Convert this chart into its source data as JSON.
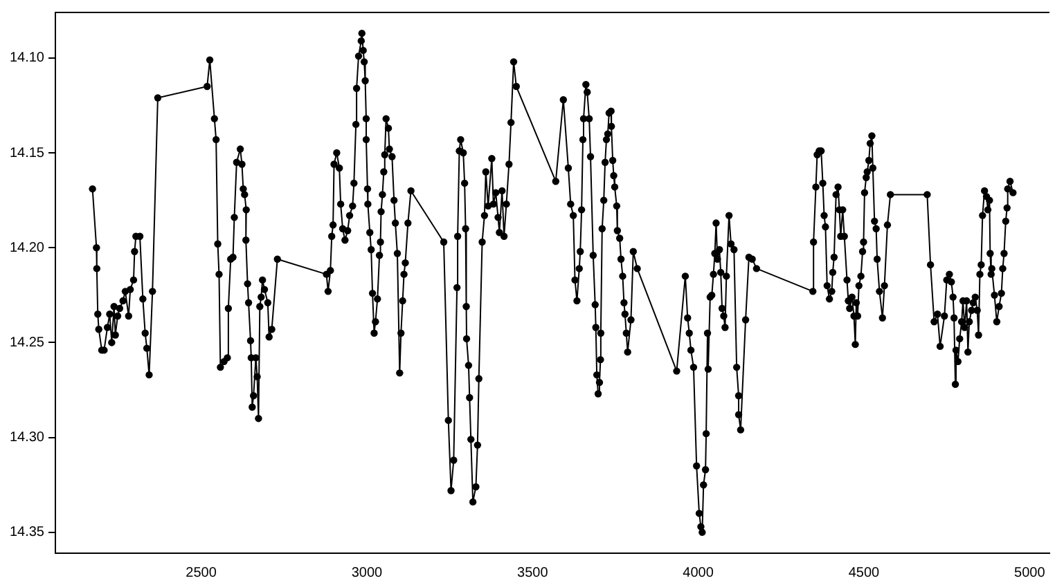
{
  "chart_data": {
    "type": "line",
    "marker": "circle",
    "line_style": "solid",
    "grid": false,
    "legend": false,
    "xlim": [
      2060,
      5060
    ],
    "xticks": [
      2500,
      3000,
      3500,
      4000,
      4500,
      5000
    ],
    "ylim": [
      14.361,
      14.076
    ],
    "yticks": [
      {
        "value": 14.1,
        "label": "14.10"
      },
      14.15,
      {
        "value": 14.2,
        "label": "14.20"
      },
      14.25,
      {
        "value": 14.3,
        "label": "14.30"
      },
      14.35
    ],
    "x": [
      2172,
      2184,
      2185,
      2188,
      2191,
      2200,
      2207,
      2217,
      2224,
      2230,
      2237,
      2241,
      2248,
      2254,
      2264,
      2271,
      2281,
      2286,
      2296,
      2299,
      2303,
      2315,
      2324,
      2331,
      2336,
      2343,
      2353,
      2369,
      2518,
      2526,
      2540,
      2545,
      2550,
      2554,
      2558,
      2569,
      2579,
      2582,
      2589,
      2596,
      2600,
      2607,
      2618,
      2623,
      2627,
      2631,
      2636,
      2635,
      2640,
      2643,
      2649,
      2651,
      2654,
      2658,
      2665,
      2669,
      2673,
      2677,
      2681,
      2685,
      2691,
      2701,
      2705,
      2713,
      2730,
      2878,
      2883,
      2890,
      2894,
      2898,
      2901,
      2909,
      2917,
      2921,
      2927,
      2934,
      2942,
      2948,
      2957,
      2961,
      2967,
      2969,
      2975,
      2983,
      2985,
      2989,
      2992,
      2995,
      2998,
      2998,
      3002,
      3003,
      3009,
      3013,
      3017,
      3022,
      3026,
      3032,
      3038,
      3041,
      3043,
      3047,
      3051,
      3054,
      3058,
      3065,
      3068,
      3076,
      3082,
      3086,
      3092,
      3099,
      3103,
      3108,
      3112,
      3116,
      3124,
      3133,
      3232,
      3246,
      3254,
      3262,
      3272,
      3274,
      3279,
      3283,
      3291,
      3295,
      3298,
      3300,
      3301,
      3307,
      3310,
      3314,
      3320,
      3329,
      3334,
      3338,
      3348,
      3355,
      3359,
      3366,
      3377,
      3382,
      3389,
      3396,
      3400,
      3408,
      3414,
      3421,
      3429,
      3435,
      3443,
      3451,
      3570,
      3593,
      3608,
      3615,
      3623,
      3628,
      3634,
      3641,
      3644,
      3648,
      3652,
      3654,
      3661,
      3665,
      3671,
      3675,
      3683,
      3689,
      3691,
      3694,
      3698,
      3702,
      3705,
      3706,
      3710,
      3715,
      3719,
      3723,
      3727,
      3731,
      3737,
      3738,
      3742,
      3745,
      3748,
      3754,
      3756,
      3763,
      3767,
      3772,
      3776,
      3779,
      3783,
      3787,
      3797,
      3804,
      3816,
      3935,
      3961,
      3968,
      3973,
      3978,
      3986,
      3995,
      4003,
      4008,
      4012,
      4016,
      4022,
      4024,
      4028,
      4030,
      4036,
      4041,
      4046,
      4050,
      4054,
      4058,
      4064,
      4068,
      4072,
      4077,
      4081,
      4085,
      4093,
      4099,
      4108,
      4116,
      4122,
      4122,
      4128,
      4143,
      4153,
      4163,
      4176,
      4346,
      4348,
      4355,
      4359,
      4365,
      4371,
      4376,
      4380,
      4384,
      4389,
      4396,
      4403,
      4406,
      4410,
      4416,
      4422,
      4426,
      4430,
      4436,
      4441,
      4449,
      4453,
      4457,
      4464,
      4470,
      4474,
      4477,
      4481,
      4485,
      4491,
      4496,
      4499,
      4502,
      4507,
      4510,
      4515,
      4519,
      4524,
      4527,
      4532,
      4537,
      4540,
      4547,
      4556,
      4562,
      4571,
      4580,
      4691,
      4701,
      4712,
      4722,
      4730,
      4743,
      4750,
      4758,
      4764,
      4769,
      4772,
      4776,
      4778,
      4784,
      4789,
      4795,
      4799,
      4804,
      4810,
      4814,
      4818,
      4825,
      4830,
      4836,
      4842,
      4846,
      4850,
      4854,
      4858,
      4864,
      4870,
      4874,
      4879,
      4881,
      4884,
      4886,
      4894,
      4901,
      4908,
      4915,
      4919,
      4923,
      4928,
      4932,
      4934,
      4941,
      4950
    ],
    "series": [
      {
        "color": "#000000",
        "values": [
          14.169,
          14.2,
          14.211,
          14.235,
          14.243,
          14.254,
          14.254,
          14.242,
          14.235,
          14.25,
          14.231,
          14.246,
          14.236,
          14.232,
          14.228,
          14.223,
          14.236,
          14.222,
          14.217,
          14.202,
          14.194,
          14.194,
          14.227,
          14.245,
          14.253,
          14.267,
          14.223,
          14.121,
          14.115,
          14.101,
          14.132,
          14.143,
          14.198,
          14.214,
          14.263,
          14.26,
          14.258,
          14.232,
          14.206,
          14.205,
          14.184,
          14.155,
          14.148,
          14.156,
          14.169,
          14.172,
          14.18,
          14.196,
          14.219,
          14.229,
          14.249,
          14.258,
          14.284,
          14.278,
          14.258,
          14.268,
          14.29,
          14.231,
          14.226,
          14.217,
          14.222,
          14.229,
          14.247,
          14.243,
          14.206,
          14.214,
          14.223,
          14.212,
          14.194,
          14.188,
          14.156,
          14.15,
          14.158,
          14.177,
          14.19,
          14.196,
          14.191,
          14.183,
          14.178,
          14.166,
          14.135,
          14.116,
          14.099,
          14.091,
          14.087,
          14.096,
          14.102,
          14.112,
          14.132,
          14.143,
          14.169,
          14.177,
          14.192,
          14.201,
          14.224,
          14.245,
          14.239,
          14.227,
          14.204,
          14.197,
          14.181,
          14.172,
          14.16,
          14.151,
          14.132,
          14.137,
          14.148,
          14.152,
          14.175,
          14.187,
          14.203,
          14.266,
          14.245,
          14.228,
          14.214,
          14.208,
          14.187,
          14.17,
          14.197,
          14.291,
          14.328,
          14.312,
          14.221,
          14.194,
          14.149,
          14.143,
          14.15,
          14.166,
          14.19,
          14.231,
          14.248,
          14.262,
          14.279,
          14.301,
          14.334,
          14.326,
          14.304,
          14.269,
          14.197,
          14.183,
          14.16,
          14.178,
          14.153,
          14.177,
          14.171,
          14.184,
          14.192,
          14.17,
          14.194,
          14.177,
          14.156,
          14.134,
          14.102,
          14.115,
          14.165,
          14.122,
          14.158,
          14.177,
          14.183,
          14.217,
          14.228,
          14.211,
          14.202,
          14.18,
          14.143,
          14.132,
          14.114,
          14.118,
          14.132,
          14.152,
          14.204,
          14.23,
          14.242,
          14.267,
          14.277,
          14.271,
          14.259,
          14.245,
          14.19,
          14.175,
          14.155,
          14.143,
          14.14,
          14.129,
          14.128,
          14.136,
          14.154,
          14.162,
          14.168,
          14.178,
          14.191,
          14.195,
          14.206,
          14.215,
          14.229,
          14.235,
          14.245,
          14.255,
          14.238,
          14.202,
          14.211,
          14.265,
          14.215,
          14.237,
          14.245,
          14.254,
          14.263,
          14.315,
          14.34,
          14.347,
          14.35,
          14.325,
          14.317,
          14.298,
          14.245,
          14.264,
          14.226,
          14.225,
          14.214,
          14.203,
          14.187,
          14.206,
          14.201,
          14.213,
          14.232,
          14.236,
          14.242,
          14.215,
          14.183,
          14.198,
          14.201,
          14.263,
          14.278,
          14.288,
          14.296,
          14.238,
          14.205,
          14.206,
          14.211,
          14.223,
          14.197,
          14.168,
          14.151,
          14.149,
          14.149,
          14.166,
          14.183,
          14.189,
          14.22,
          14.227,
          14.223,
          14.213,
          14.205,
          14.172,
          14.168,
          14.18,
          14.194,
          14.18,
          14.194,
          14.217,
          14.228,
          14.232,
          14.226,
          14.236,
          14.251,
          14.229,
          14.236,
          14.22,
          14.215,
          14.202,
          14.197,
          14.171,
          14.163,
          14.16,
          14.154,
          14.145,
          14.141,
          14.158,
          14.186,
          14.19,
          14.206,
          14.223,
          14.237,
          14.22,
          14.188,
          14.172,
          14.172,
          14.209,
          14.239,
          14.235,
          14.252,
          14.236,
          14.217,
          14.214,
          14.218,
          14.226,
          14.237,
          14.272,
          14.254,
          14.26,
          14.248,
          14.239,
          14.228,
          14.242,
          14.228,
          14.255,
          14.239,
          14.233,
          14.229,
          14.226,
          14.233,
          14.246,
          14.214,
          14.209,
          14.183,
          14.17,
          14.173,
          14.18,
          14.175,
          14.203,
          14.214,
          14.211,
          14.225,
          14.239,
          14.231,
          14.224,
          14.211,
          14.203,
          14.186,
          14.179,
          14.169,
          14.165,
          14.171
        ]
      }
    ]
  }
}
